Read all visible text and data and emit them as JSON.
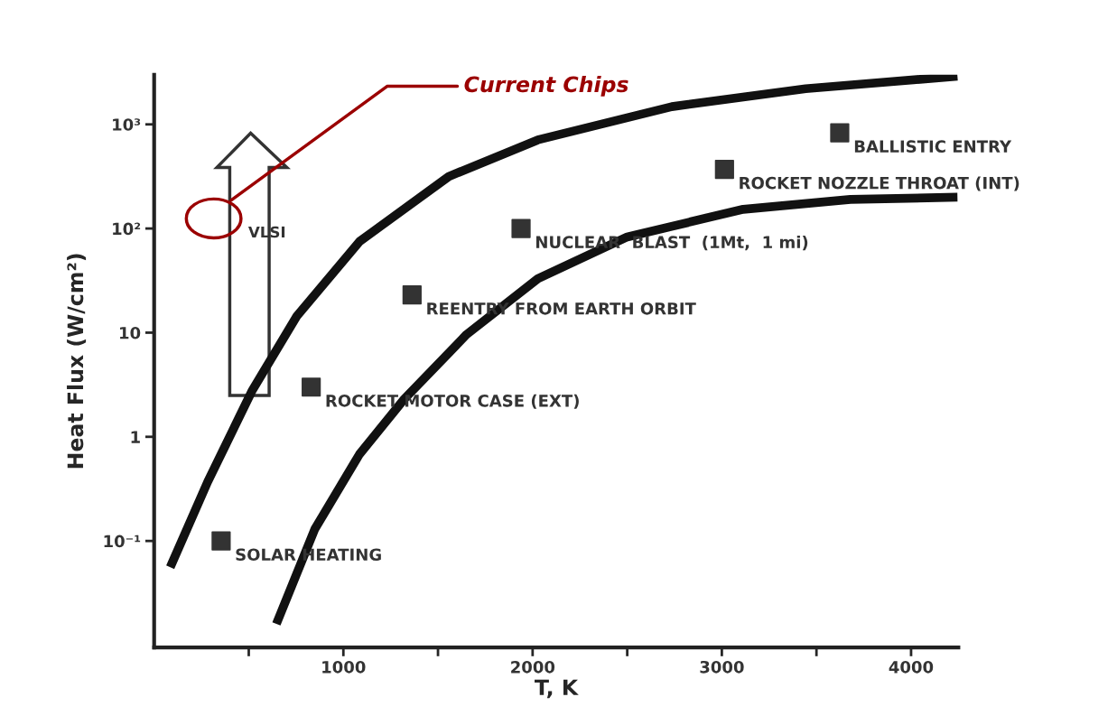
{
  "chart_data": {
    "type": "scatter",
    "xlabel": "T, K",
    "ylabel": "Heat Flux (W/cm²)",
    "log": "y",
    "xlim": [
      0,
      4250
    ],
    "ylim": [
      0.0095,
      3000
    ],
    "xticks": [
      {
        "value": 500,
        "label": null
      },
      1000,
      {
        "value": 1500,
        "label": null
      },
      2000,
      {
        "value": 2500,
        "label": null
      },
      3000,
      {
        "value": 3500,
        "label": null
      },
      4000
    ],
    "yticks": [
      {
        "value": 0.1,
        "label": "10⁻¹"
      },
      1,
      10,
      {
        "value": 100,
        "label": "10²"
      },
      {
        "value": 1000,
        "label": "10³"
      }
    ],
    "grid": false,
    "legend": false,
    "series": [
      {
        "type": "line",
        "color": "#111111",
        "x": [
          85,
          283,
          519,
          755,
          1085,
          1557,
          2028,
          2736,
          3443,
          4245
        ],
        "values": [
          0.056,
          0.37,
          2.8,
          14.5,
          75,
          316,
          710,
          1480,
          2200,
          2900
        ]
      },
      {
        "type": "line",
        "color": "#111111",
        "x": [
          646,
          849,
          1085,
          1321,
          1651,
          2028,
          2500,
          3113,
          3679,
          4245
        ],
        "values": [
          0.016,
          0.13,
          0.68,
          2.3,
          9.6,
          33,
          83,
          153,
          190,
          200
        ]
      },
      {
        "marker": "square",
        "color": "#333333",
        "x": [
          354,
          830,
          1363,
          1939,
          3014,
          3623
        ],
        "values": [
          0.1,
          3,
          23,
          100,
          370,
          830
        ]
      }
    ],
    "annotations": [
      {
        "text": "SOLAR HEATING",
        "x": 354,
        "y": 0.1
      },
      {
        "text": "ROCKET MOTOR CASE (EXT)",
        "x": 830,
        "y": 3
      },
      {
        "text": "REENTRY FROM EARTH ORBIT",
        "x": 1363,
        "y": 23
      },
      {
        "text": "NUCLEAR  BLAST  (1Mt,  1 mi)",
        "x": 1939,
        "y": 100
      },
      {
        "text": "ROCKET NOZZLE THROAT (INT)",
        "x": 3014,
        "y": 370
      },
      {
        "text": "BALLISTIC ENTRY",
        "x": 3623,
        "y": 830
      },
      "VLSI",
      "Current Chips"
    ]
  }
}
